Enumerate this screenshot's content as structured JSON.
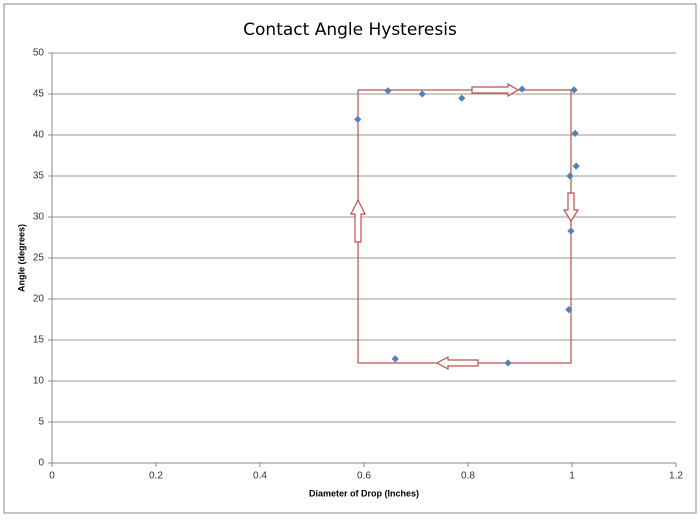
{
  "chart_data": {
    "type": "scatter",
    "title": "Contact Angle Hysteresis",
    "x_label": "Diameter of Drop (Inches)",
    "y_label": "Angle (degrees)",
    "series": [
      {
        "color": "#4f81bd",
        "x": [
          0.588,
          0.646,
          0.712,
          0.788,
          0.904,
          1.004,
          1.006,
          1.008,
          0.996,
          0.998,
          0.994,
          0.66,
          0.877
        ],
        "values": [
          41.9,
          45.4,
          45.0,
          44.5,
          45.6,
          45.5,
          40.2,
          36.2,
          35.0,
          28.3,
          18.7,
          12.7,
          12.2
        ]
      }
    ],
    "xlim": [
      0,
      1.2
    ],
    "xticks": [
      0,
      0.2,
      0.4,
      0.6,
      0.8,
      1,
      1.2
    ],
    "ylim": [
      0,
      50
    ],
    "yticks": [
      0,
      5,
      10,
      15,
      20,
      25,
      30,
      35,
      40,
      45,
      50
    ],
    "grid": true
  }
}
